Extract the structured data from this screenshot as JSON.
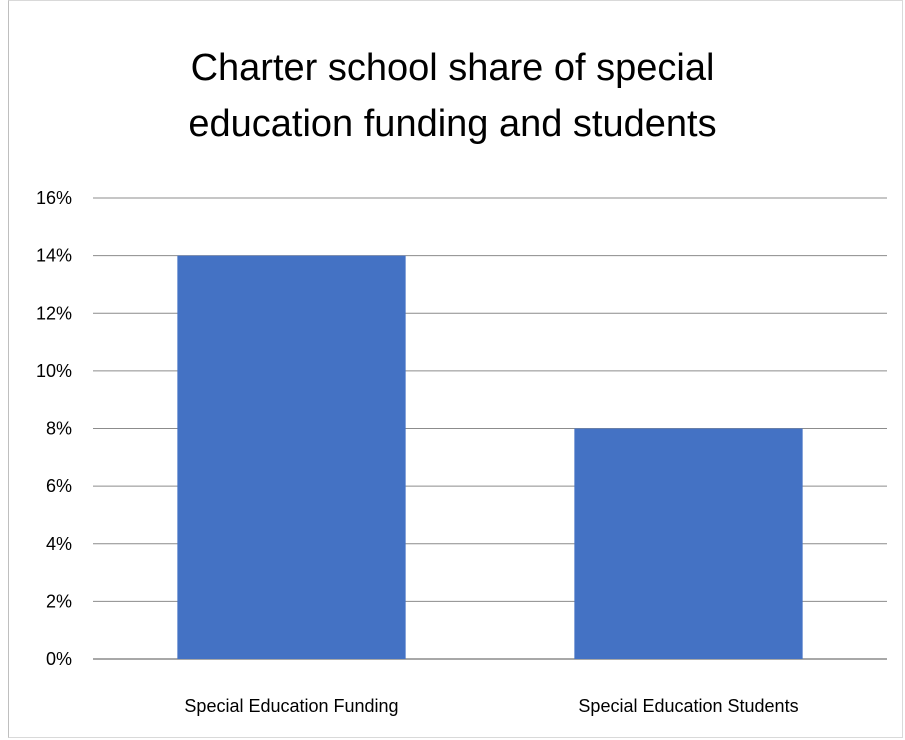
{
  "chart_data": {
    "type": "bar",
    "title_lines": [
      "Charter school share of special",
      "education funding and students"
    ],
    "categories": [
      "Special Education Funding",
      "Special Education Students"
    ],
    "values": [
      0.14,
      0.08
    ],
    "ylim": [
      0,
      0.16
    ],
    "yticks": [
      "0%",
      "2%",
      "4%",
      "6%",
      "8%",
      "10%",
      "12%",
      "14%",
      "16%"
    ],
    "xlabel": "",
    "ylabel": "",
    "grid": true,
    "legend": "none",
    "bar_color": "#4472c4",
    "grid_color": "#8c8c8c"
  }
}
